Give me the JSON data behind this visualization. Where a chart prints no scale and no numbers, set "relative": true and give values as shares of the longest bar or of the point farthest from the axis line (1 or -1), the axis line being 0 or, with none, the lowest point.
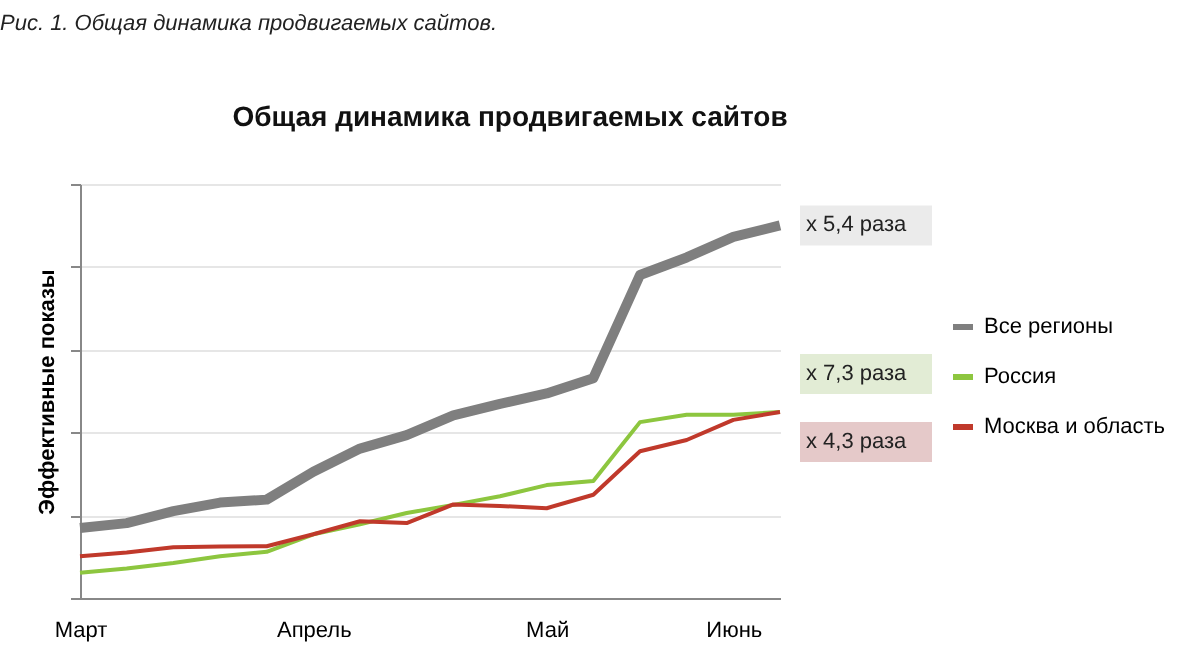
{
  "chart_data": {
    "type": "line",
    "title": "Общая динамика продвигаемых сайтов",
    "ylabel": "Эффективные показы",
    "relative": true,
    "categories": [
      "Март",
      null,
      null,
      null,
      null,
      "Апрель",
      null,
      null,
      null,
      null,
      "Май",
      null,
      null,
      null,
      "Июнь",
      null
    ],
    "series": [
      {
        "name": "Все регионы",
        "color": "#7f7f7f",
        "values": [
          0.188,
          0.201,
          0.233,
          0.256,
          0.264,
          0.339,
          0.401,
          0.437,
          0.49,
          0.521,
          0.549,
          0.59,
          0.867,
          0.914,
          0.969,
          1.0
        ]
      },
      {
        "name": "Россия",
        "color": "#8dc63f",
        "values": [
          0.068,
          0.079,
          0.094,
          0.112,
          0.124,
          0.171,
          0.198,
          0.228,
          0.25,
          0.273,
          0.303,
          0.314,
          0.472,
          0.492,
          0.492,
          0.499
        ]
      },
      {
        "name": "Москва и область",
        "color": "#c0392b",
        "values": [
          0.112,
          0.122,
          0.136,
          0.138,
          0.139,
          0.171,
          0.206,
          0.201,
          0.251,
          0.247,
          0.241,
          0.277,
          0.394,
          0.424,
          0.478,
          0.499
        ]
      }
    ],
    "annotations": [
      "Рис. 1. Общая динамика продвигаемых сайтов.",
      "x 5,4 раза",
      "x 7,3 раза",
      "x 4,3 раза"
    ],
    "grid": "y",
    "legend": "right",
    "line_style": "solid",
    "marker": "none"
  }
}
